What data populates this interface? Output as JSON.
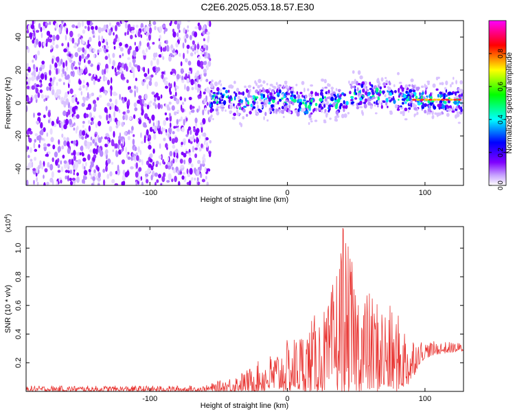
{
  "title": "C2E6.2025.053.18.57.E30",
  "chart_data": [
    {
      "type": "heatmap",
      "xlabel": "Height of straight line (km)",
      "ylabel": "Frequency (Hz)",
      "xlim": [
        -190,
        128
      ],
      "ylim": [
        -50,
        50
      ],
      "xticks": [
        -100,
        0,
        100
      ],
      "xtick_labels": [
        "-100",
        "0",
        "100"
      ],
      "yticks": [
        -40,
        -20,
        0,
        20,
        40
      ],
      "ytick_labels": [
        "-40",
        "-20",
        "0",
        "20",
        "40"
      ],
      "colorbar": {
        "label": "Normalized spectral amplitude",
        "range": [
          0,
          1
        ],
        "ticks": [
          0.0,
          0.2,
          0.4,
          0.6,
          0.8
        ],
        "tick_labels": [
          "0.0",
          "0.2",
          "0.4",
          "0.6",
          "0.8"
        ],
        "colormap": [
          "#ffffff",
          "#7f00ff",
          "#0000ff",
          "#00ffff",
          "#00ff00",
          "#ffff00",
          "#ff0000",
          "#ff00ff"
        ]
      },
      "regions": [
        {
          "x_range": [
            -190,
            -56
          ],
          "description": "broadband noise",
          "frequency_range": [
            -50,
            50
          ]
        },
        {
          "x_range": [
            -56,
            128
          ],
          "description": "narrow band signal",
          "center_frequency": 2,
          "width": 12
        }
      ],
      "band_center_samples": {
        "x": [
          -56,
          -45,
          -35,
          -25,
          -15,
          -5,
          5,
          15,
          25,
          35,
          45,
          55,
          65,
          75,
          85,
          95,
          105,
          115,
          128
        ],
        "y": [
          2,
          4,
          -1,
          2,
          0,
          3,
          1,
          -2,
          2,
          0,
          3,
          6,
          5,
          4,
          3,
          2,
          2,
          2,
          2
        ]
      }
    },
    {
      "type": "line",
      "xlabel": "Height of straight line (km)",
      "ylabel": "SNR (10 * v/v)",
      "yscale_label": "(x10",
      "yscale_exp": "4",
      "xlim": [
        -190,
        128
      ],
      "ylim": [
        0,
        11500
      ],
      "xticks": [
        -100,
        0,
        100
      ],
      "xtick_labels": [
        "-100",
        "0",
        "100"
      ],
      "yticks": [
        2000,
        4000,
        6000,
        8000,
        10000
      ],
      "ytick_labels": [
        "0.2",
        "0.4",
        "0.6",
        "0.8",
        "1.0"
      ],
      "color": "#e8322f",
      "envelope": {
        "x": [
          -190,
          -60,
          -45,
          -30,
          -20,
          -10,
          0,
          10,
          20,
          30,
          40,
          50,
          60,
          70,
          80,
          90,
          95,
          100,
          110,
          128
        ],
        "min": [
          0,
          0,
          0,
          0,
          0,
          0,
          0,
          0,
          0,
          0,
          0,
          0,
          0,
          0,
          0,
          500,
          1800,
          2300,
          2600,
          2800
        ],
        "max": [
          400,
          400,
          900,
          1500,
          2200,
          2800,
          3600,
          4300,
          5400,
          6100,
          11500,
          8200,
          7000,
          6400,
          5500,
          4200,
          3700,
          3500,
          3500,
          3400
        ]
      }
    }
  ]
}
